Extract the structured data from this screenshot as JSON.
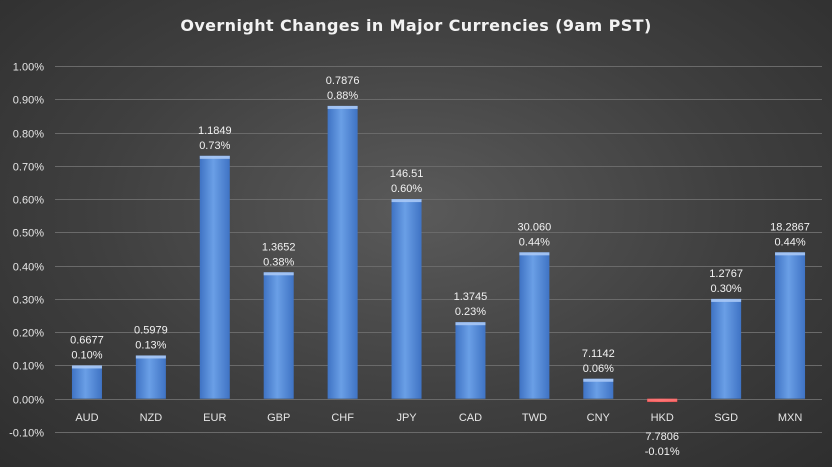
{
  "chart_data": {
    "type": "bar",
    "title": "Overnight Changes in Major Currencies (9am PST)",
    "xlabel": "",
    "ylabel": "",
    "ylim": [
      -0.001,
      0.01
    ],
    "yticks": [
      -0.001,
      0,
      0.001,
      0.002,
      0.003,
      0.004,
      0.005,
      0.006,
      0.007,
      0.008,
      0.009,
      0.01
    ],
    "ytick_labels": [
      "-0.10%",
      "0.00%",
      "0.10%",
      "0.20%",
      "0.30%",
      "0.40%",
      "0.50%",
      "0.60%",
      "0.70%",
      "0.80%",
      "0.90%",
      "1.00%"
    ],
    "grid": true,
    "categories": [
      "AUD",
      "NZD",
      "EUR",
      "GBP",
      "CHF",
      "JPY",
      "CAD",
      "TWD",
      "CNY",
      "HKD",
      "SGD",
      "MXN"
    ],
    "values": [
      0.001,
      0.0013,
      0.0073,
      0.0038,
      0.0088,
      0.006,
      0.0023,
      0.0044,
      0.0006,
      -0.0001,
      0.003,
      0.0044
    ],
    "rate_labels": [
      "0.6677",
      "0.5979",
      "1.1849",
      "1.3652",
      "0.7876",
      "146.51",
      "1.3745",
      "30.060",
      "7.1142",
      "7.7806",
      "1.2767",
      "18.2867"
    ],
    "pct_labels": [
      "0.10%",
      "0.13%",
      "0.73%",
      "0.38%",
      "0.88%",
      "0.60%",
      "0.23%",
      "0.44%",
      "0.06%",
      "-0.01%",
      "0.30%",
      "0.44%"
    ],
    "colors": {
      "positive": "#5b8fdc",
      "negative": "#e03030",
      "background": "#454545",
      "text": "#e6e6e6",
      "grid": "#6a6a6a"
    }
  }
}
